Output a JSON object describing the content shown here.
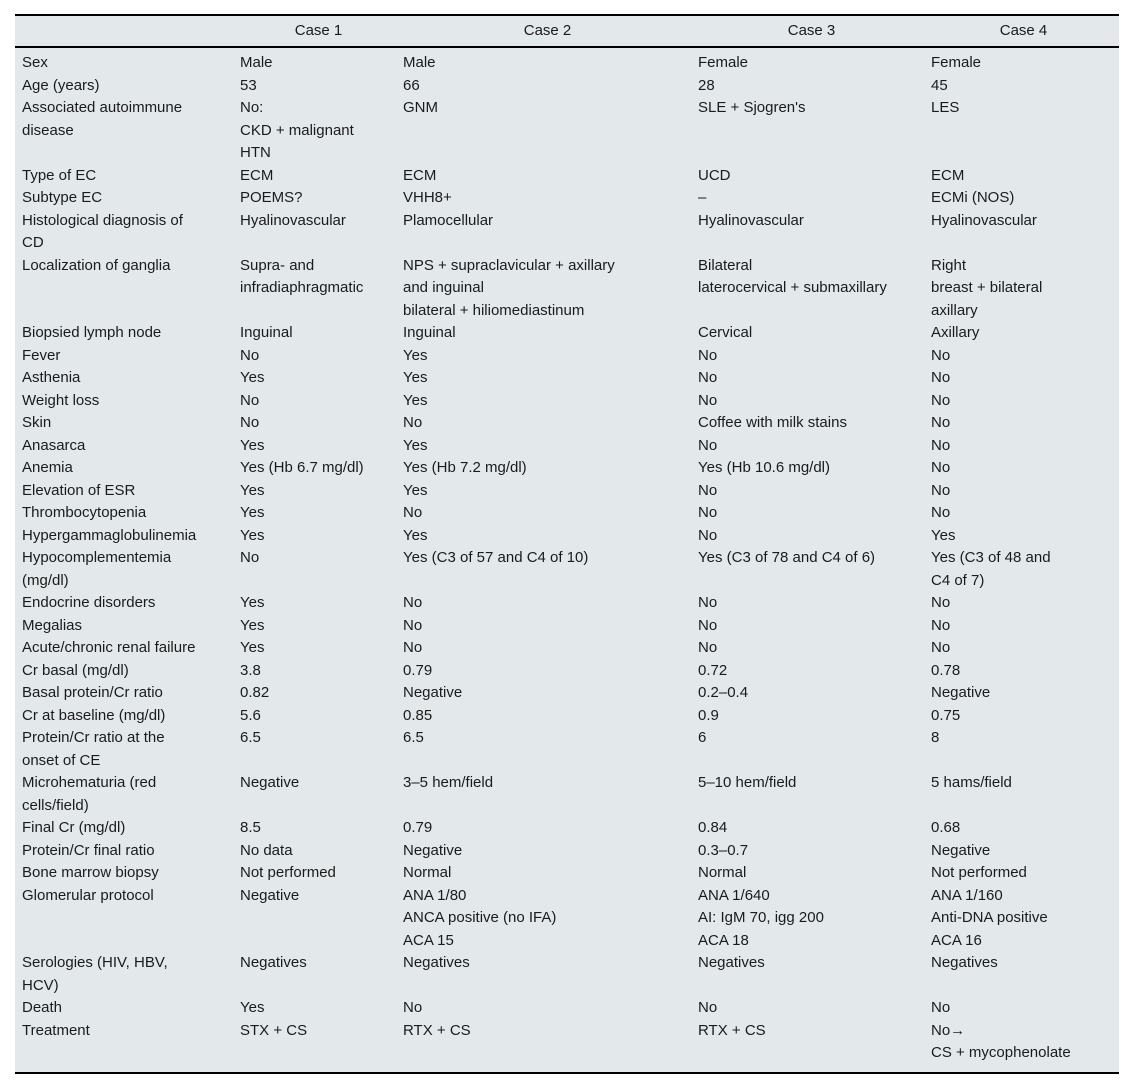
{
  "colors": {
    "table_background": "#e3e8ea",
    "rule": "#000000",
    "text": "#1b1b1b"
  },
  "table": {
    "columns": [
      "",
      "Case 1",
      "Case 2",
      "Case 3",
      "Case 4"
    ],
    "rows": [
      {
        "label": "Sex",
        "values": [
          "Male",
          "Male",
          "Female",
          "Female"
        ]
      },
      {
        "label": "Age (years)",
        "values": [
          "53",
          "66",
          "28",
          "45"
        ]
      },
      {
        "label": "Associated autoimmune\ndisease",
        "values": [
          "No:\nCKD + malignant\nHTN",
          "GNM",
          "SLE + Sjogren's",
          "LES"
        ]
      },
      {
        "label": "Type of EC",
        "values": [
          "ECM",
          "ECM",
          "UCD",
          "ECM"
        ]
      },
      {
        "label": "Subtype EC",
        "values": [
          "POEMS?",
          "VHH8+",
          "–",
          "ECMi (NOS)"
        ]
      },
      {
        "label": "Histological diagnosis of\nCD",
        "values": [
          "Hyalinovascular",
          "Plamocellular",
          "Hyalinovascular",
          "Hyalinovascular"
        ]
      },
      {
        "label": "Localization of ganglia",
        "values": [
          "Supra- and\ninfradiaphragmatic",
          "NPS + supraclavicular + axillary\nand inguinal\nbilateral + hiliomediastinum",
          "Bilateral\nlaterocervical + submaxillary",
          "Right\nbreast + bilateral\naxillary"
        ]
      },
      {
        "label": "Biopsied lymph node",
        "values": [
          "Inguinal",
          "Inguinal",
          "Cervical",
          "Axillary"
        ]
      },
      {
        "label": "Fever",
        "values": [
          "No",
          "Yes",
          "No",
          "No"
        ]
      },
      {
        "label": "Asthenia",
        "values": [
          "Yes",
          "Yes",
          "No",
          "No"
        ]
      },
      {
        "label": "Weight loss",
        "values": [
          "No",
          "Yes",
          "No",
          "No"
        ]
      },
      {
        "label": "Skin",
        "values": [
          "No",
          "No",
          "Coffee with milk stains",
          "No"
        ]
      },
      {
        "label": "Anasarca",
        "values": [
          "Yes",
          "Yes",
          "No",
          "No"
        ]
      },
      {
        "label": "Anemia",
        "values": [
          "Yes (Hb 6.7 mg/dl)",
          "Yes (Hb 7.2 mg/dl)",
          "Yes (Hb 10.6 mg/dl)",
          "No"
        ]
      },
      {
        "label": "Elevation of ESR",
        "values": [
          "Yes",
          "Yes",
          "No",
          "No"
        ]
      },
      {
        "label": "Thrombocytopenia",
        "values": [
          "Yes",
          "No",
          "No",
          "No"
        ]
      },
      {
        "label": "Hypergammaglobulinemia",
        "values": [
          "Yes",
          "Yes",
          "No",
          "Yes"
        ]
      },
      {
        "label": "Hypocomplementemia\n(mg/dl)",
        "values": [
          "No",
          "Yes (C3 of 57 and C4 of 10)",
          "Yes (C3 of 78 and C4 of 6)",
          "Yes (C3 of 48 and\nC4 of 7)"
        ]
      },
      {
        "label": "Endocrine disorders",
        "values": [
          "Yes",
          "No",
          "No",
          "No"
        ]
      },
      {
        "label": "Megalias",
        "values": [
          "Yes",
          "No",
          "No",
          "No"
        ]
      },
      {
        "label": "Acute/chronic renal failure",
        "values": [
          "Yes",
          "No",
          "No",
          "No"
        ]
      },
      {
        "label": "Cr basal (mg/dl)",
        "values": [
          "3.8",
          "0.79",
          "0.72",
          "0.78"
        ]
      },
      {
        "label": "Basal protein/Cr ratio",
        "values": [
          "0.82",
          "Negative",
          "0.2–0.4",
          "Negative"
        ]
      },
      {
        "label": "Cr at baseline (mg/dl)",
        "values": [
          "5.6",
          "0.85",
          "0.9",
          "0.75"
        ]
      },
      {
        "label": "Protein/Cr ratio at the\nonset of CE",
        "values": [
          "6.5",
          "6.5",
          "6",
          "8"
        ]
      },
      {
        "label": "Microhematuria (red\ncells/field)",
        "values": [
          "Negative",
          "3–5 hem/field",
          "5–10 hem/field",
          "5 hams/field"
        ]
      },
      {
        "label": "Final Cr (mg/dl)",
        "values": [
          "8.5",
          "0.79",
          "0.84",
          "0.68"
        ]
      },
      {
        "label": "Protein/Cr final ratio",
        "values": [
          "No data",
          "Negative",
          "0.3–0.7",
          "Negative"
        ]
      },
      {
        "label": "Bone marrow biopsy",
        "values": [
          "Not performed",
          "Normal",
          "Normal",
          "Not performed"
        ]
      },
      {
        "label": "Glomerular protocol",
        "values": [
          "Negative",
          "ANA 1/80\nANCA positive (no IFA)\nACA 15",
          "ANA 1/640\nAI: IgM 70, igg 200\nACA 18",
          "ANA 1/160\nAnti-DNA positive\nACA 16"
        ]
      },
      {
        "label": "Serologies (HIV, HBV,\nHCV)",
        "values": [
          "Negatives",
          "Negatives",
          "Negatives",
          "Negatives"
        ]
      },
      {
        "label": "Death",
        "values": [
          "Yes",
          "No",
          "No",
          "No"
        ]
      },
      {
        "label": "Treatment",
        "values": [
          "STX + CS",
          "RTX + CS",
          "RTX + CS",
          "No→\nCS + mycophenolate"
        ]
      }
    ]
  }
}
